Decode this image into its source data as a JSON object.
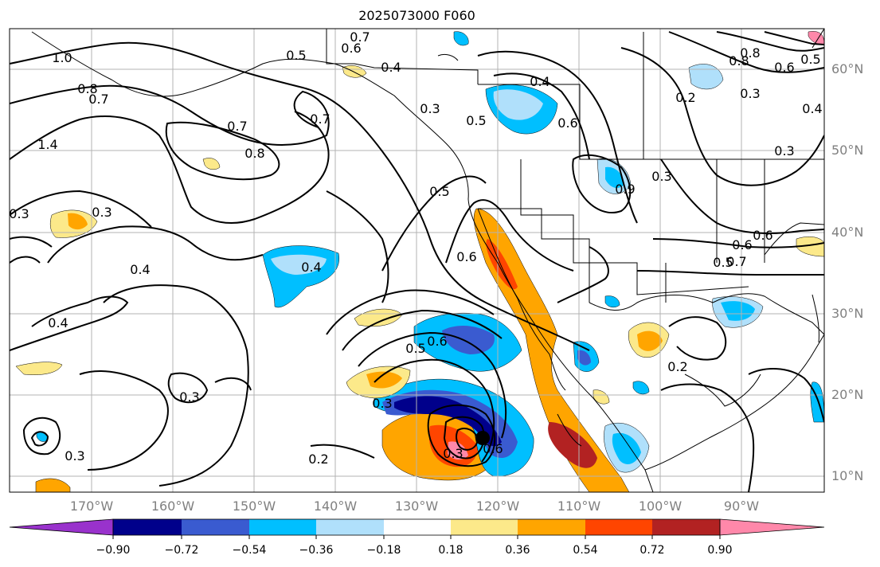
{
  "title": "2025073000 F060",
  "lat_labels": [
    "60°N",
    "50°N",
    "40°N",
    "30°N",
    "20°N",
    "10°N"
  ],
  "lon_labels": [
    "170°W",
    "160°W",
    "150°W",
    "140°W",
    "130°W",
    "120°W",
    "110°W",
    "100°W",
    "90°W"
  ],
  "colorbar": {
    "ticks": [
      "−0.90",
      "−0.72",
      "−0.54",
      "−0.36",
      "−0.18",
      "0.18",
      "0.36",
      "0.54",
      "0.72",
      "0.90"
    ],
    "colors": [
      "#9932cc",
      "#00008b",
      "#3a5bd0",
      "#00bfff",
      "#b0e0fb",
      "#ffffff",
      "#fce98a",
      "#ffa500",
      "#ff4500",
      "#b22222",
      "#ff88aa"
    ],
    "extend": "both"
  },
  "contour_labels": [
    "0.7",
    "0.6",
    "0.4",
    "0.5",
    "1.0",
    "0.8",
    "0.7",
    "0.7",
    "0.8",
    "1.4",
    "0.7",
    "0.3",
    "0.5",
    "0.4",
    "0.6",
    "0.8",
    "0.8",
    "0.6",
    "0.5",
    "0.3",
    "0.9",
    "0.2",
    "0.3",
    "0.3",
    "0.6",
    "0.3",
    "0.4",
    "0.4",
    "0.4",
    "0.6",
    "0.5",
    "0.5",
    "0.6",
    "0.3",
    "0.2",
    "0.6",
    "0.5",
    "0.7",
    "0.3",
    "0.3",
    "0.2",
    "0.3",
    "0.4",
    "0.6",
    "0.3"
  ],
  "colors": {
    "grid": "#b3b3b3",
    "contour": "#000000",
    "axis_text": "#808080"
  }
}
